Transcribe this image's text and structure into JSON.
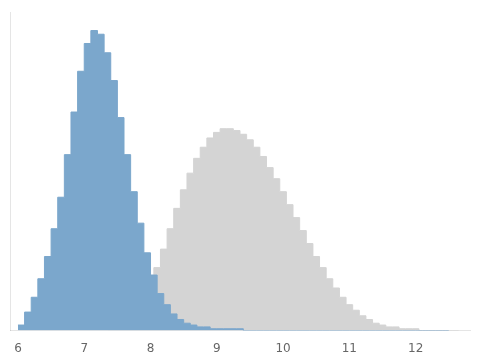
{
  "chart_data": {
    "type": "histogram",
    "series": [
      {
        "color": "#d4d4d4",
        "bins": [
          7.35,
          7.45,
          7.55,
          7.65,
          7.75,
          7.85,
          7.95,
          8.05,
          8.15,
          8.25,
          8.35,
          8.45,
          8.55,
          8.65,
          8.75,
          8.85,
          8.95,
          9.05,
          9.15,
          9.25,
          9.35,
          9.45,
          9.55,
          9.65,
          9.75,
          9.85,
          9.95,
          10.05,
          10.15,
          10.25,
          10.35,
          10.45,
          10.55,
          10.65,
          10.75,
          10.85,
          10.95,
          11.05,
          11.15,
          11.25,
          11.35,
          11.45,
          11.55,
          11.65,
          11.75,
          11.85,
          11.95,
          12.05,
          12.15,
          12.25,
          12.35,
          12.45,
          12.55,
          12.65
        ],
        "values": [
          1,
          2,
          4,
          7,
          11,
          17,
          25,
          34,
          44,
          55,
          66,
          76,
          85,
          93,
          99,
          104,
          107,
          109,
          109,
          108,
          106,
          103,
          99,
          94,
          88,
          82,
          75,
          68,
          61,
          54,
          47,
          40,
          34,
          28,
          23,
          18,
          14,
          11,
          8,
          6,
          4,
          3,
          2,
          2,
          1,
          1,
          1,
          0,
          0,
          0,
          0,
          0,
          0
        ]
      },
      {
        "color": "#7ba7cc",
        "bins": [
          6.0,
          6.1,
          6.2,
          6.3,
          6.4,
          6.5,
          6.6,
          6.7,
          6.8,
          6.9,
          7.0,
          7.1,
          7.2,
          7.3,
          7.4,
          7.5,
          7.6,
          7.7,
          7.8,
          7.9,
          8.0,
          8.1,
          8.2,
          8.3,
          8.4,
          8.5,
          8.6,
          8.7,
          8.8,
          8.9,
          9.0,
          9.1,
          9.2,
          9.3,
          9.4,
          9.5,
          9.6,
          9.7,
          9.8,
          9.9,
          10.0,
          10.1,
          10.2,
          10.3,
          10.4,
          10.5,
          10.6,
          10.7,
          10.8,
          10.9,
          11.0,
          11.1,
          11.2,
          11.3,
          11.4,
          11.5,
          11.6,
          11.7,
          11.8,
          11.9,
          12.0,
          12.1,
          12.2,
          12.3,
          12.4,
          12.5
        ],
        "values": [
          3,
          10,
          18,
          28,
          40,
          55,
          72,
          95,
          118,
          140,
          155,
          162,
          160,
          150,
          135,
          115,
          95,
          75,
          58,
          42,
          30,
          20,
          14,
          9,
          6,
          4,
          3,
          2,
          2,
          1,
          1,
          1,
          1,
          1,
          0,
          0,
          0,
          0,
          0,
          0,
          0,
          0,
          0,
          0,
          0,
          0,
          0,
          0,
          0,
          0,
          0,
          0,
          0,
          0,
          0,
          0,
          0,
          0,
          0,
          0,
          0,
          0,
          0,
          0,
          0
        ]
      }
    ],
    "xlim": [
      5.88,
      12.82
    ],
    "xticks": [
      6,
      7,
      8,
      9,
      10,
      11,
      12
    ],
    "ylim": [
      0,
      172
    ],
    "tick_labels": "x",
    "grid": false
  }
}
